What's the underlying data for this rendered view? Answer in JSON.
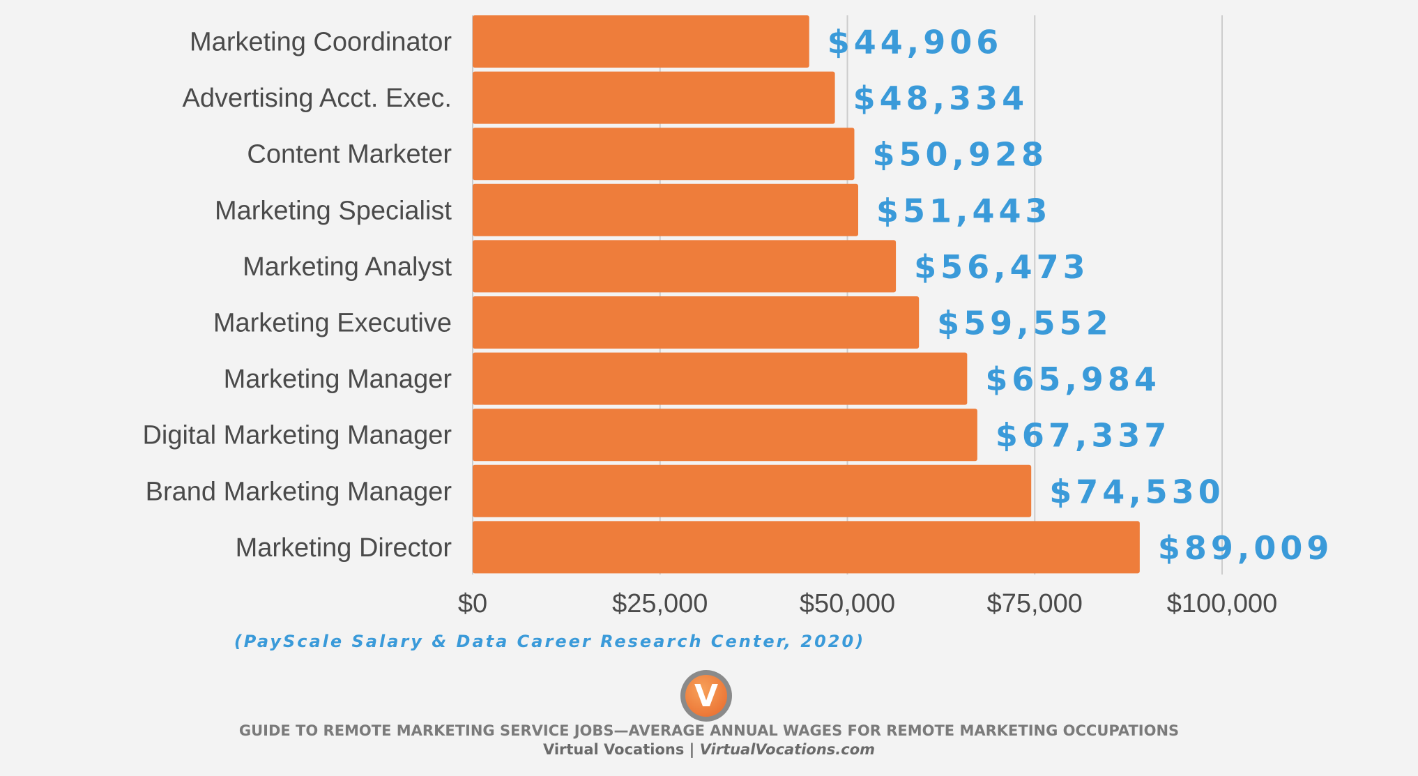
{
  "chart_data": {
    "type": "bar",
    "orientation": "horizontal",
    "categories": [
      "Marketing Coordinator",
      "Advertising Acct. Exec.",
      "Content Marketer",
      "Marketing Specialist",
      "Marketing Analyst",
      "Marketing Executive",
      "Marketing Manager",
      "Digital Marketing Manager",
      "Brand Marketing Manager",
      "Marketing Director"
    ],
    "values": [
      44906,
      48334,
      50928,
      51443,
      56473,
      59552,
      65984,
      67337,
      74530,
      89009
    ],
    "data_labels": [
      "$44,906",
      "$48,334",
      "$50,928",
      "$51,443",
      "$56,473",
      "$59,552",
      "$65,984",
      "$67,337",
      "$74,530",
      "$89,009"
    ],
    "xticks": [
      0,
      25000,
      50000,
      75000,
      100000
    ],
    "xtick_labels": [
      "$0",
      "$25,000",
      "$50,000",
      "$75,000",
      "$100,000"
    ],
    "xlim": [
      0,
      100000
    ],
    "grid": true,
    "legend": "none",
    "bar_color": "#ee7d3b",
    "label_color": "#3a9ad9"
  },
  "source_note": "(PayScale Salary & Data Career Research Center, 2020)",
  "logo": {
    "letter": "V",
    "icon": "virtual-vocations-logo"
  },
  "footer": {
    "title": "GUIDE TO REMOTE MARKETING SERVICE JOBS—AVERAGE ANNUAL WAGES FOR REMOTE MARKETING OCCUPATIONS",
    "brand": "Virtual Vocations",
    "separator": " | ",
    "site": "VirtualVocations.com"
  }
}
